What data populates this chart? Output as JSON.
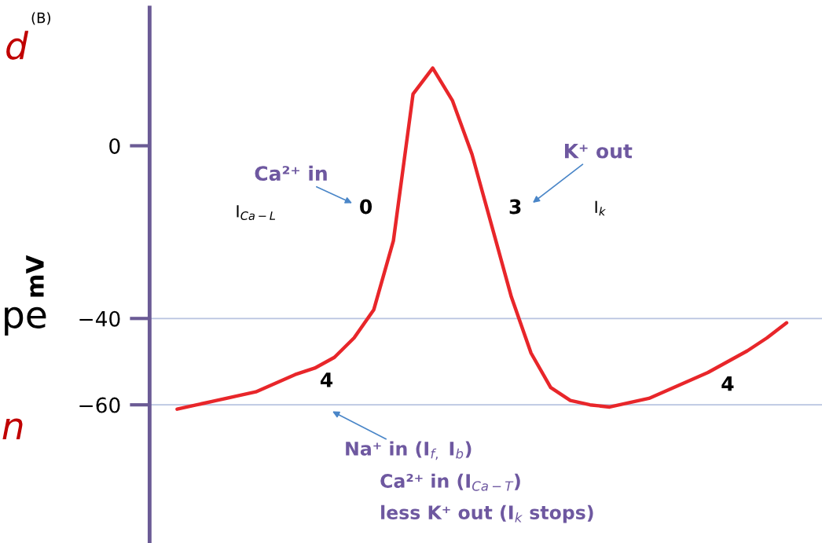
{
  "chart_data": {
    "type": "line",
    "ylabel": "mV",
    "categories": [
      null,
      null,
      null,
      null,
      null,
      null,
      null,
      null,
      null,
      null,
      null,
      null,
      null,
      null,
      null,
      null,
      null,
      null,
      null,
      null,
      null,
      null,
      null,
      null,
      null,
      null,
      null,
      null,
      null,
      null,
      null,
      null
    ],
    "series": [
      {
        "color": "#e8262a",
        "values": [
          -61,
          -60,
          -59,
          -58,
          -57,
          -55,
          -53,
          -51.5,
          -49,
          -44.5,
          -38,
          -22,
          12,
          18,
          10.5,
          -2,
          -18.5,
          -35,
          -48,
          -56,
          -59,
          -60,
          -60.5,
          -59.5,
          -58.5,
          -56.5,
          -54.5,
          -52.5,
          -50,
          -47.5,
          -44.5,
          -41
        ]
      }
    ],
    "ylim": [
      -92,
      32
    ],
    "yticks": [
      0,
      {
        "value": -40,
        "label": "−40"
      },
      {
        "value": -60,
        "label": "−60"
      }
    ],
    "tick_labels": "y",
    "grid": false,
    "legend": false,
    "marker": "none",
    "line_style": "solid",
    "ref_lines": [
      {
        "axis": "y",
        "value": -40,
        "color": "#b8c4e0"
      },
      {
        "axis": "y",
        "value": -60,
        "color": "#b8c4e0"
      }
    ],
    "annotations": [
      "(B)",
      "d",
      "pe",
      "n",
      "Ca²⁺ in",
      "I$_{Ca−L}$",
      "0",
      "K⁺ out",
      "I$_{k}$",
      "3",
      "4",
      "4",
      "Na⁺ in (I$_{f,}$ I$_{b}$)",
      "Ca²⁺ in (I$_{Ca−T}$)",
      "less K⁺ out (I$_{k}$ stops)"
    ]
  }
}
